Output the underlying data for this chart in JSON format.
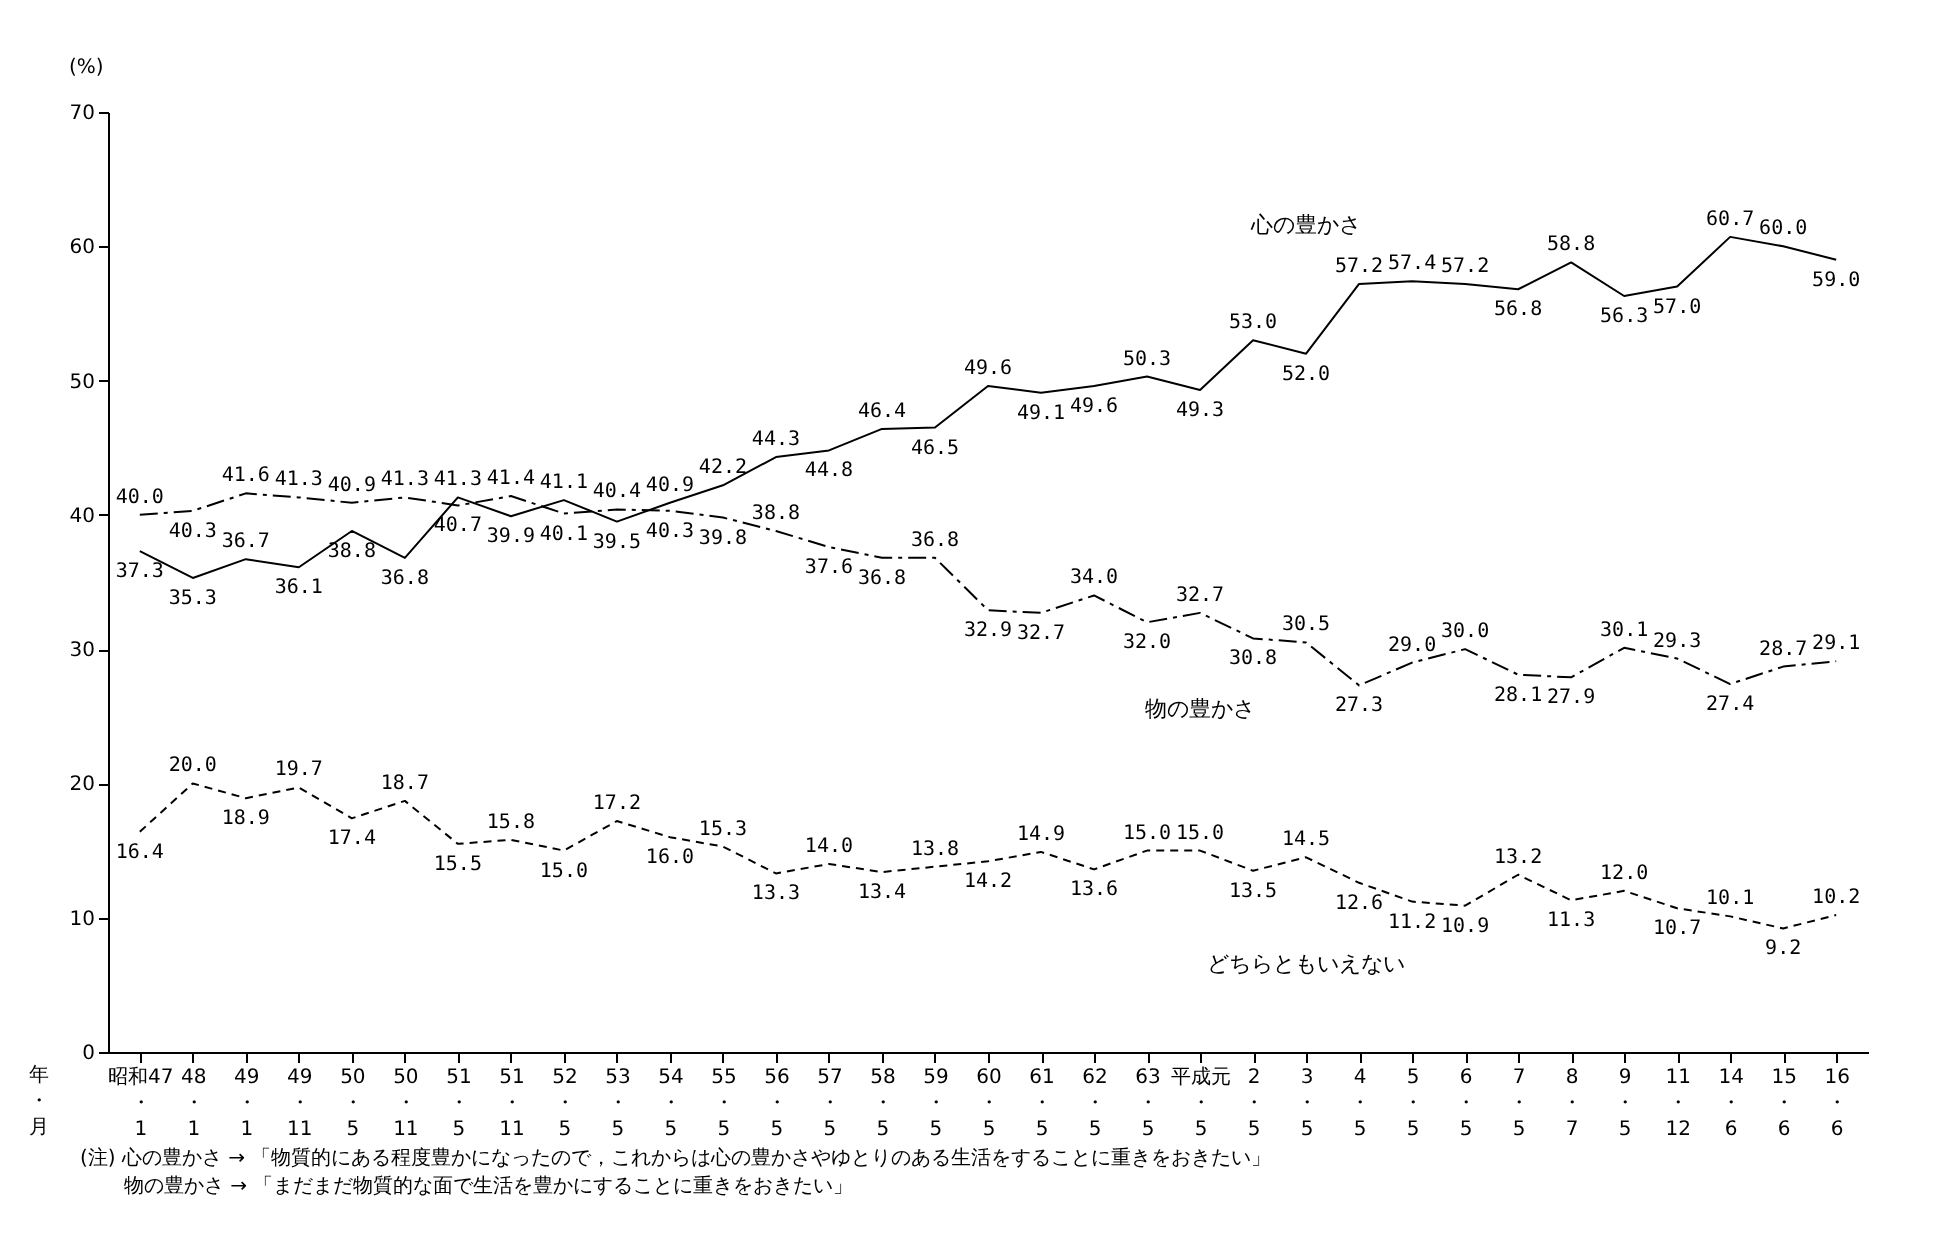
{
  "chart_data": {
    "type": "line",
    "ylabel": "(%)",
    "xlabel": "年・月",
    "categories": [
      "昭和47・1",
      "48・1",
      "49・1",
      "49・11",
      "50・5",
      "50・11",
      "51・5",
      "51・11",
      "52・5",
      "53・5",
      "54・5",
      "55・5",
      "56・5",
      "57・5",
      "58・5",
      "59・5",
      "60・5",
      "61・5",
      "62・5",
      "63・5",
      "平成元・5",
      "2・5",
      "3・5",
      "4・5",
      "5・5",
      "6・5",
      "7・5",
      "8・7",
      "9・5",
      "11・12",
      "14・6",
      "15・6",
      "16・6"
    ],
    "series": [
      {
        "name": "心の豊かさ",
        "color": "#000000",
        "line_style": "solid",
        "values": [
          37.3,
          35.3,
          36.7,
          36.1,
          38.8,
          36.8,
          41.3,
          39.9,
          41.1,
          39.5,
          40.9,
          42.2,
          44.3,
          44.8,
          46.4,
          46.5,
          49.6,
          49.1,
          49.6,
          50.3,
          49.3,
          53.0,
          52.0,
          57.2,
          57.4,
          57.2,
          56.8,
          58.8,
          56.3,
          57.0,
          60.7,
          60.0,
          59.0
        ],
        "value_labels": [
          "37.3",
          "35.3",
          "36.7",
          "36.1",
          "38.8",
          "36.8",
          "41.3",
          "39.9",
          "41.1",
          "39.5",
          "40.9",
          "42.2",
          "44.3",
          "44.8",
          "46.4",
          "46.5",
          "49.6",
          "49.1",
          "49.6",
          "50.3",
          "49.3",
          "53.0",
          "52.0",
          "57.2",
          "57.4",
          "57.2",
          "56.8",
          "58.8",
          "56.3",
          "57.0",
          "60.7",
          "60.0",
          "59.0"
        ]
      },
      {
        "name": "物の豊かさ",
        "color": "#000000",
        "line_style": "dashdot",
        "values": [
          40.0,
          40.3,
          41.6,
          41.3,
          40.9,
          41.3,
          40.7,
          41.4,
          40.1,
          40.4,
          40.3,
          39.8,
          38.8,
          37.6,
          36.8,
          36.8,
          32.9,
          32.7,
          34.0,
          32.0,
          32.7,
          30.8,
          30.5,
          27.3,
          29.0,
          30.0,
          28.1,
          27.9,
          30.1,
          29.3,
          27.4,
          28.7,
          29.1
        ],
        "value_labels": [
          "40.0",
          "40.3",
          "41.6",
          "41.3",
          "40.9",
          "41.3",
          "40.7",
          "41.4",
          "40.1",
          "40.4",
          "40.3",
          "39.8",
          "38.8",
          "37.6",
          "36.8",
          "36.8",
          "32.9",
          "32.7",
          "34.0",
          "32.0",
          "32.7",
          "30.8",
          "30.5",
          "27.3",
          "29.0",
          "30.0",
          "28.1",
          "27.9",
          "30.1",
          "29.3",
          "27.4",
          "28.7",
          "29.1"
        ]
      },
      {
        "name": "どちらともいえない",
        "color": "#000000",
        "line_style": "dashed",
        "values": [
          16.4,
          20.0,
          18.9,
          19.7,
          17.4,
          18.7,
          15.5,
          15.8,
          15.0,
          17.2,
          16.0,
          15.3,
          13.3,
          14.0,
          13.4,
          13.8,
          14.2,
          14.9,
          13.6,
          15.0,
          15.0,
          13.5,
          14.5,
          12.6,
          11.2,
          10.9,
          13.2,
          11.3,
          12.0,
          10.7,
          10.1,
          9.2,
          10.2
        ],
        "value_labels": [
          "16.4",
          "20.0",
          "18.9",
          "19.7",
          "17.4",
          "18.7",
          "15.5",
          "15.8",
          "15.0",
          "17.2",
          "16.0",
          "15.3",
          "13.3",
          "14.0",
          "13.4",
          "13.8",
          "14.2",
          "14.9",
          "13.6",
          "15.0",
          "15.0",
          "13.5",
          "14.5",
          "12.6",
          "11.2",
          "10.9",
          "13.2",
          "11.3",
          "12.0",
          "10.7",
          "10.1",
          "9.2",
          "10.2"
        ]
      }
    ],
    "ylim": [
      0,
      70
    ],
    "yticks": [
      0,
      10,
      20,
      30,
      40,
      50,
      60,
      70
    ],
    "grid": false,
    "marker": "none",
    "annotations": [
      "(注) 心の豊かさ → 「物質的にある程度豊かになったので，これからは心の豊かさやゆとりのある生活をすることに重きをおきたい」",
      "物の豊かさ → 「まだまだ物質的な面で生活を豊かにすることに重きをおきたい」"
    ]
  }
}
